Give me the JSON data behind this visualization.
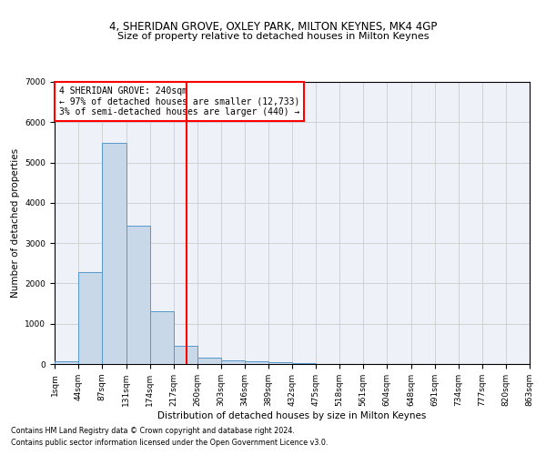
{
  "title": "4, SHERIDAN GROVE, OXLEY PARK, MILTON KEYNES, MK4 4GP",
  "subtitle": "Size of property relative to detached houses in Milton Keynes",
  "xlabel": "Distribution of detached houses by size in Milton Keynes",
  "ylabel": "Number of detached properties",
  "bin_edges": [
    1,
    44,
    87,
    131,
    174,
    217,
    260,
    303,
    346,
    389,
    432,
    475,
    518,
    561,
    604,
    648,
    691,
    734,
    777,
    820,
    863
  ],
  "bar_heights": [
    75,
    2280,
    5480,
    3440,
    1310,
    460,
    155,
    100,
    65,
    35,
    15,
    10,
    5,
    3,
    2,
    1,
    1,
    1,
    0,
    0
  ],
  "bar_color": "#c8d8e8",
  "bar_edgecolor": "#5599cc",
  "grid_color": "#cccccc",
  "bg_color": "#eef2f8",
  "vline_x": 240,
  "vline_color": "red",
  "annotation_text": "4 SHERIDAN GROVE: 240sqm\n← 97% of detached houses are smaller (12,733)\n3% of semi-detached houses are larger (440) →",
  "annotation_box_color": "red",
  "ylim": [
    0,
    7000
  ],
  "yticks": [
    0,
    1000,
    2000,
    3000,
    4000,
    5000,
    6000,
    7000
  ],
  "footnote1": "Contains HM Land Registry data © Crown copyright and database right 2024.",
  "footnote2": "Contains public sector information licensed under the Open Government Licence v3.0.",
  "tick_labels": [
    "1sqm",
    "44sqm",
    "87sqm",
    "131sqm",
    "174sqm",
    "217sqm",
    "260sqm",
    "303sqm",
    "346sqm",
    "389sqm",
    "432sqm",
    "475sqm",
    "518sqm",
    "561sqm",
    "604sqm",
    "648sqm",
    "691sqm",
    "734sqm",
    "777sqm",
    "820sqm",
    "863sqm"
  ],
  "title_fontsize": 8.5,
  "subtitle_fontsize": 8.0,
  "axis_label_fontsize": 7.5,
  "tick_fontsize": 6.5,
  "annotation_fontsize": 7.0,
  "footnote_fontsize": 5.8
}
